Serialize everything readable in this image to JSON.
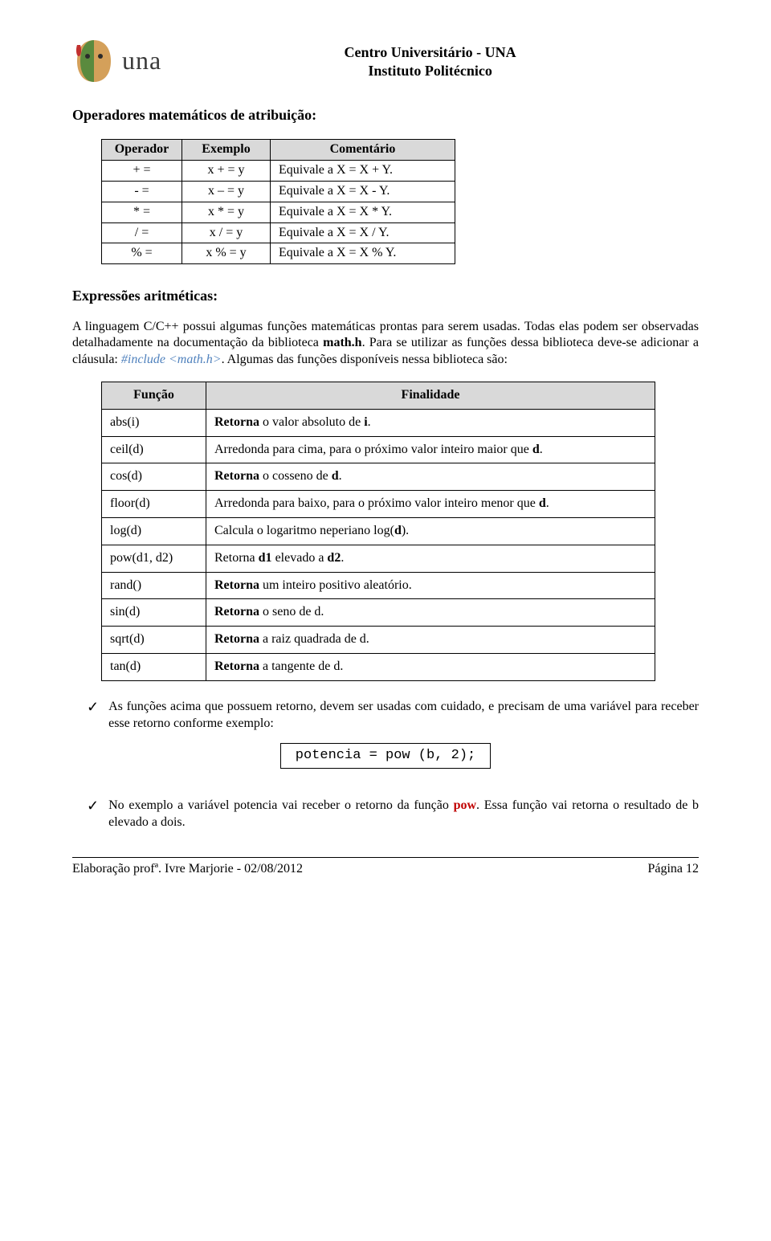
{
  "header": {
    "logo_text": "una",
    "line1": "Centro Universitário - UNA",
    "line2": "Instituto Politécnico"
  },
  "title1": "Operadores matemáticos de atribuição:",
  "ops_table": {
    "headers": [
      "Operador",
      "Exemplo",
      "Comentário"
    ],
    "rows": [
      [
        "+ =",
        "x + = y",
        "Equivale a X = X + Y."
      ],
      [
        "- =",
        "x – = y",
        "Equivale a X = X - Y."
      ],
      [
        "* =",
        "x * = y",
        "Equivale a X = X * Y."
      ],
      [
        "/ =",
        "x / = y",
        "Equivale a X = X / Y."
      ],
      [
        "% =",
        "x % = y",
        "Equivale a X = X % Y."
      ]
    ]
  },
  "title2": "Expressões aritméticas:",
  "para1_a": "A linguagem C/C++ possui algumas funções matemáticas prontas para serem usadas. Todas elas podem ser observadas detalhadamente na documentação da biblioteca ",
  "para1_b": "math.h",
  "para1_c": ". Para se utilizar as funções dessa biblioteca deve-se adicionar a cláusula: ",
  "para1_d": "#include <math.h>",
  "para1_e": ". Algumas das funções disponíveis nessa biblioteca são:",
  "funcs_table": {
    "headers": [
      "Função",
      "Finalidade"
    ],
    "rows": [
      {
        "fn": "abs(i)",
        "desc_pre": "Retorna",
        "desc_mid": " o valor absoluto de ",
        "desc_bold": "i",
        "desc_post": "."
      },
      {
        "fn": "ceil(d)",
        "desc_pre": "",
        "desc_mid": "Arredonda para cima, para o próximo valor inteiro maior que ",
        "desc_bold": "d",
        "desc_post": "."
      },
      {
        "fn": "cos(d)",
        "desc_pre": "Retorna",
        "desc_mid": " o cosseno de ",
        "desc_bold": "d",
        "desc_post": "."
      },
      {
        "fn": "floor(d)",
        "desc_pre": "",
        "desc_mid": "Arredonda para baixo, para o próximo valor inteiro menor que ",
        "desc_bold": "d",
        "desc_post": "."
      },
      {
        "fn": "log(d)",
        "desc_pre": "",
        "desc_mid": "Calcula o logaritmo neperiano log(",
        "desc_bold": "d",
        "desc_post": ")."
      },
      {
        "fn": "pow(d1, d2)",
        "desc_pre": "",
        "desc_mid": "Retorna ",
        "desc_bold": "d1",
        "desc_post": " elevado a ",
        "desc_bold2": "d2",
        "desc_post2": "."
      },
      {
        "fn": "rand()",
        "desc_pre": "Retorna",
        "desc_mid": " um inteiro positivo aleatório.",
        "desc_bold": "",
        "desc_post": ""
      },
      {
        "fn": "sin(d)",
        "desc_pre": "Retorna",
        "desc_mid": " o seno de d.",
        "desc_bold": "",
        "desc_post": ""
      },
      {
        "fn": "sqrt(d)",
        "desc_pre": "Retorna",
        "desc_mid": " a raiz quadrada de d.",
        "desc_bold": "",
        "desc_post": ""
      },
      {
        "fn": "tan(d)",
        "desc_pre": "Retorna",
        "desc_mid": " a tangente de d.",
        "desc_bold": "",
        "desc_post": ""
      }
    ]
  },
  "check1": "As funções acima que possuem retorno, devem ser usadas com cuidado, e precisam de uma variável para receber esse retorno conforme exemplo:",
  "codebox": "potencia = pow (b, 2);",
  "check2_a": "No exemplo a variável potencia vai receber o retorno da função ",
  "check2_b": "pow",
  "check2_c": ". Essa função vai retorna o resultado de b elevado a dois.",
  "footer": {
    "left": "Elaboração profª. Ivre Marjorie - 02/08/2012",
    "right": "Página 12"
  }
}
